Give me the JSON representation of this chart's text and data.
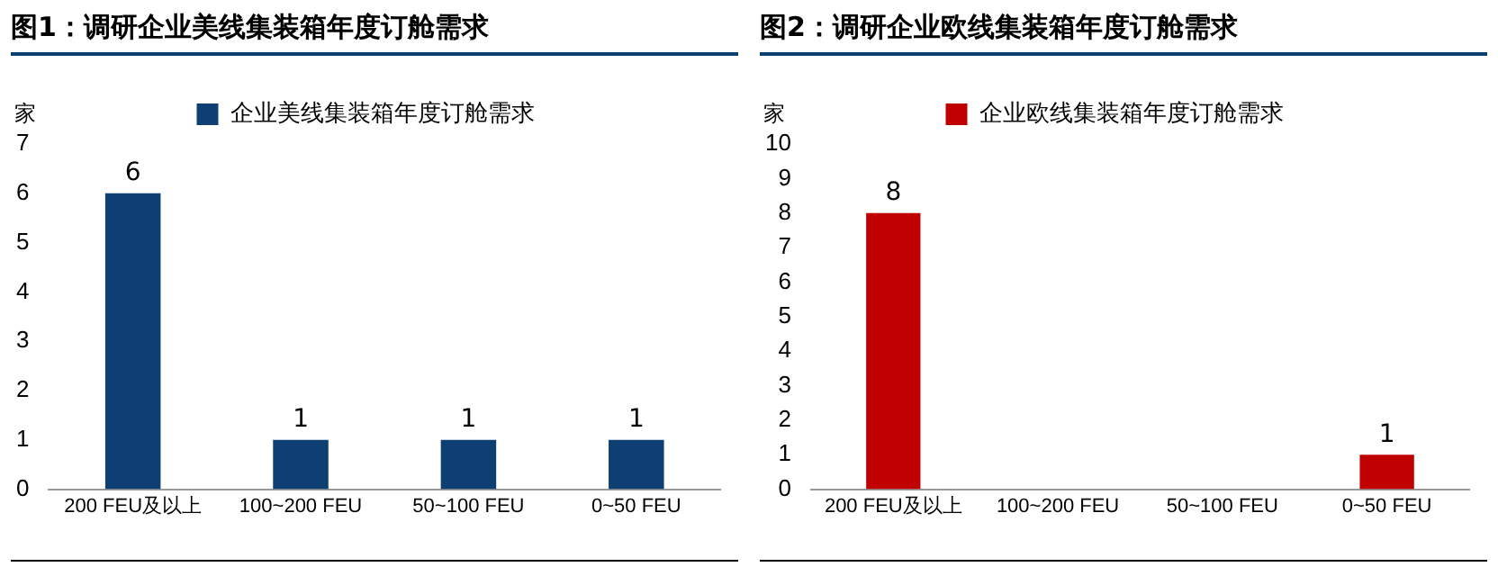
{
  "chart_data": [
    {
      "type": "bar",
      "title": "图1：调研企业美线集装箱年度订舱需求",
      "ylabel": "家",
      "categories": [
        "200 FEU及以上",
        "100~200 FEU",
        "50~100 FEU",
        "0~50 FEU"
      ],
      "series": [
        {
          "name": "企业美线集装箱年度订舱需求",
          "color": "#0e3f73",
          "values": [
            6,
            1,
            1,
            1
          ]
        }
      ],
      "ylim": [
        0,
        7
      ],
      "yticks": [
        0,
        1,
        2,
        3,
        4,
        5,
        6,
        7
      ],
      "grid": false,
      "legend": "top",
      "data_labels": true
    },
    {
      "type": "bar",
      "title": "图2：调研企业欧线集装箱年度订舱需求",
      "ylabel": "家",
      "categories": [
        "200 FEU及以上",
        "100~200 FEU",
        "50~100 FEU",
        "0~50 FEU"
      ],
      "series": [
        {
          "name": "企业欧线集装箱年度订舱需求",
          "color": "#c00000",
          "values": [
            8,
            0,
            0,
            1
          ],
          "value_labels": [
            "8",
            null,
            null,
            "1"
          ]
        }
      ],
      "ylim": [
        0,
        10
      ],
      "yticks": [
        0,
        1,
        2,
        3,
        4,
        5,
        6,
        7,
        8,
        9,
        10
      ],
      "grid": false,
      "legend": "top"
    }
  ]
}
